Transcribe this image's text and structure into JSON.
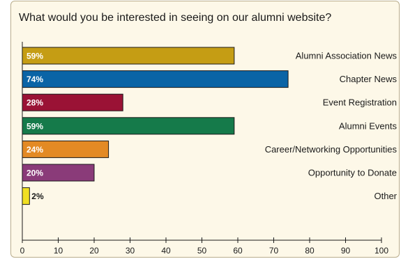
{
  "chart_data": {
    "type": "bar",
    "orientation": "horizontal",
    "title": "What would you be interested in seeing on our alumni website?",
    "xlim": [
      0,
      100
    ],
    "xticks": [
      0,
      10,
      20,
      30,
      40,
      50,
      60,
      70,
      80,
      90,
      100
    ],
    "grid": false,
    "categories": [
      "Alumni Association News",
      "Chapter News",
      "Event Registration",
      "Alumni Events",
      "Career/Networking Opportunities",
      "Opportunity to Donate",
      "Other"
    ],
    "values": [
      59,
      74,
      28,
      59,
      24,
      20,
      2
    ],
    "labels": [
      "59%",
      "74%",
      "28%",
      "59%",
      "24%",
      "20%",
      "2%"
    ],
    "colors": [
      "#c59d14",
      "#0a64a6",
      "#9a1235",
      "#157a4a",
      "#e38a24",
      "#8a3b79",
      "#f0df22"
    ]
  }
}
